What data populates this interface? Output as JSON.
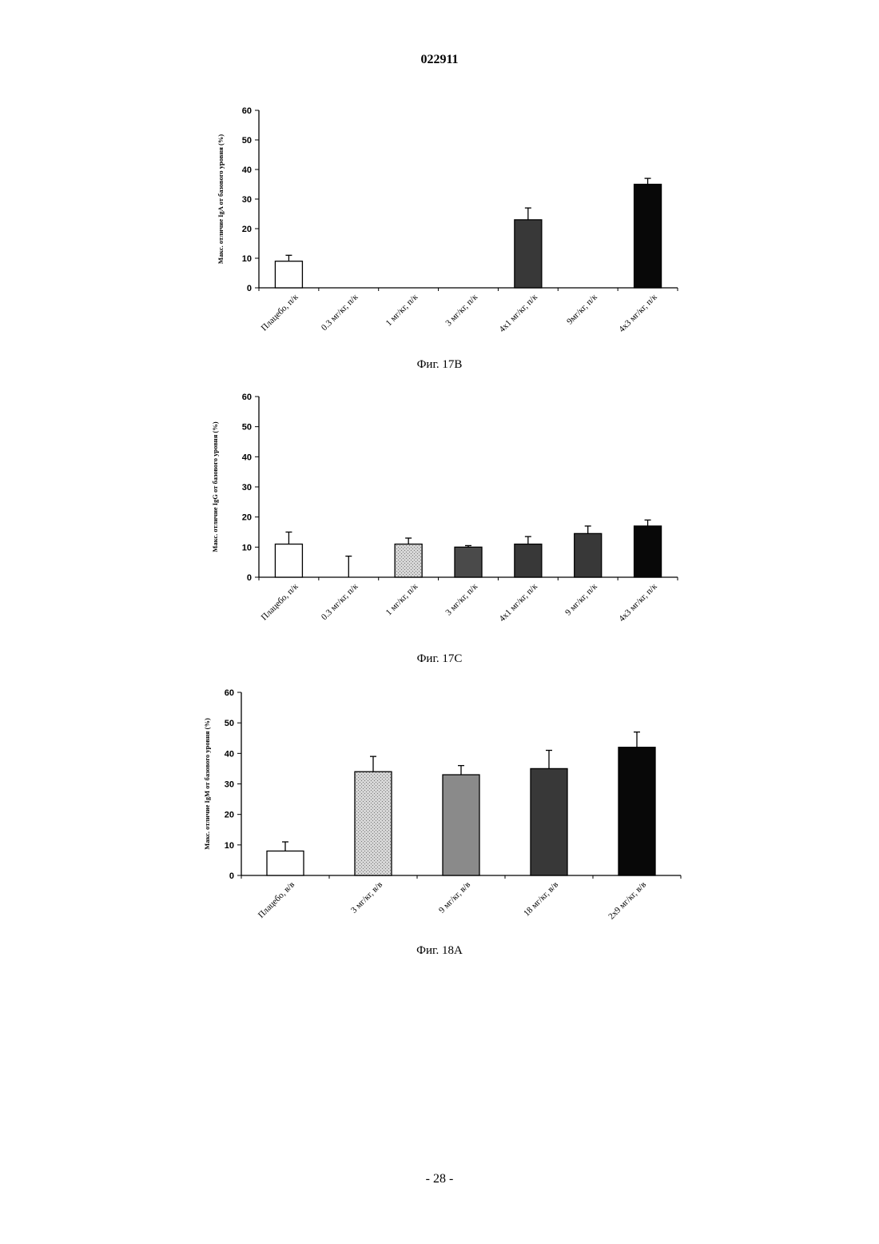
{
  "header": {
    "doc_number": "022911"
  },
  "footer": {
    "page_number": "- 28 -"
  },
  "colors": {
    "white": "#ffffff",
    "light_stipple": "#c8c8c8",
    "medium_gray": "#8a8a8a",
    "dark_gray": "#4a4a4a",
    "darker_gray": "#383838",
    "black": "#080808"
  },
  "chart_data": [
    {
      "type": "bar",
      "caption": "Фиг. 17B",
      "ylabel": "Макс. отличие IgA от базового уровня (%)",
      "ylim": [
        0,
        60
      ],
      "yticks": [
        0,
        10,
        20,
        30,
        40,
        50,
        60
      ],
      "grid": false,
      "categories": [
        "Плацебо, п/к",
        "0.3 мг/кг, п/к",
        "1 мг/кг, п/к",
        "3 мг/кг, п/к",
        "4x1 мг/кг, п/к",
        "9мг/кг, п/к",
        "4x3 мг/кг, п/к"
      ],
      "values": [
        9,
        0,
        0,
        0,
        23,
        0,
        35
      ],
      "errors": [
        2,
        0,
        0,
        0,
        4,
        0,
        2
      ],
      "bar_colors": [
        "white",
        "white",
        "white",
        "white",
        "darker_gray",
        "white",
        "black"
      ]
    },
    {
      "type": "bar",
      "caption": "Фиг. 17C",
      "ylabel": "Макс. отличие IgG от базового уровня (%)",
      "ylim": [
        0,
        60
      ],
      "yticks": [
        0,
        10,
        20,
        30,
        40,
        50,
        60
      ],
      "grid": false,
      "categories": [
        "Плацебо, п/к",
        "0.3 мг/кг, п/к",
        "1 мг/кг, п/к",
        "3 мг/кг, п/к",
        "4x1 мг/кг, п/к",
        "9 мг/кг, п/к",
        "4x3 мг/кг, п/к"
      ],
      "values": [
        11,
        0,
        11,
        10,
        11,
        14.5,
        17
      ],
      "errors": [
        4,
        7,
        2,
        0.5,
        2.5,
        2.5,
        2
      ],
      "bar_colors": [
        "white",
        "white",
        "light_stipple",
        "dark_gray",
        "darker_gray",
        "darker_gray",
        "black"
      ]
    },
    {
      "type": "bar",
      "caption": "Фиг. 18A",
      "ylabel": "Макс. отличие IgM от базового уровня (%)",
      "ylim": [
        0,
        60
      ],
      "yticks": [
        0,
        10,
        20,
        30,
        40,
        50,
        60
      ],
      "grid": false,
      "categories": [
        "Плацебо, в/в",
        "3 мг/кг, в/в",
        "9 мг/кг, в/в",
        "18 мг/кг, в/в",
        "2x9 мг/кг, в/в"
      ],
      "values": [
        8,
        34,
        33,
        35,
        42
      ],
      "errors": [
        3,
        5,
        3,
        6,
        5
      ],
      "bar_colors": [
        "white",
        "light_stipple",
        "medium_gray",
        "darker_gray",
        "black"
      ]
    }
  ]
}
